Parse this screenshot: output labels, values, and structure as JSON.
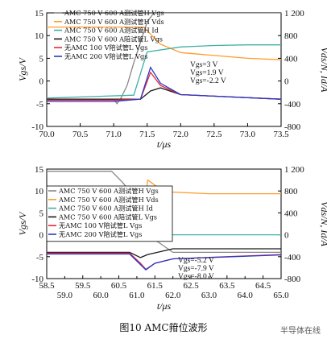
{
  "figure": {
    "caption": "图10   AMC箝位波形",
    "watermark": "半导体在线"
  },
  "chart_data": [
    {
      "type": "line",
      "xlabel": "t/μs",
      "ylabel_left": "Vgs/V",
      "ylabel_right": "Vds/N, Id/A",
      "xlim": [
        70.0,
        73.5
      ],
      "ylim_left": [
        -10,
        15
      ],
      "ylim_right": [
        -400,
        1200
      ],
      "x_ticks": [
        "70.0",
        "70.5",
        "71.0",
        "71.5",
        "72.0",
        "72.5",
        "73.0",
        "73.5"
      ],
      "y_ticks_left": [
        "15",
        "10",
        "5",
        "0",
        "-5",
        "-10"
      ],
      "y_ticks_right": [
        "1 200",
        "800",
        "400",
        "0",
        "-400",
        "-800"
      ],
      "legend": [
        "AMC 750 V 600 A测试管H Vgs",
        "AMC 750 V 600 A测试管H Vds",
        "AMC 750 V 600 A测试管H Id",
        "AMC 750 V 600 A陪试管L Vgs",
        "无AMC 100 V陪试管L Vgs",
        "无AMC 200 V陪试管L Vgs"
      ],
      "annotations": [
        "Vgs=3 V",
        "Vgs=1.9 V",
        "Vgs=-2.2 V"
      ],
      "series": [
        {
          "name": "AMC 750 V 600 A测试管H Vgs",
          "axis": "left",
          "color": "#888888",
          "x": [
            70.0,
            71.0,
            71.05,
            71.1,
            71.2,
            71.3,
            71.5,
            71.6,
            73.5
          ],
          "y": [
            -4,
            -4,
            -5,
            -4,
            -1,
            4,
            13,
            15,
            15
          ]
        },
        {
          "name": "AMC 750 V 600 A测试管H Vds",
          "axis": "right",
          "color": "#ff9c2a",
          "x": [
            70.0,
            71.45,
            71.55,
            71.7,
            72.0,
            72.5,
            73.0,
            73.5
          ],
          "y": [
            1000,
            1000,
            900,
            760,
            640,
            600,
            560,
            540
          ]
        },
        {
          "name": "AMC 750 V 600 A测试管H Id",
          "axis": "right",
          "color": "#3fb0a8",
          "x": [
            70.0,
            71.3,
            71.5,
            72.0,
            72.5,
            73.0,
            73.5
          ],
          "y": [
            0,
            40,
            650,
            720,
            740,
            750,
            750
          ]
        },
        {
          "name": "AMC 750 V 600 A陪试管L Vgs",
          "axis": "left",
          "color": "#1a1a1a",
          "x": [
            70.0,
            71.0,
            71.4,
            71.55,
            71.7,
            72.0,
            73.5
          ],
          "y": [
            -4,
            -4,
            -4,
            -2.2,
            -1.5,
            -3,
            -4
          ]
        },
        {
          "name": "无AMC 100 V陪试管L Vgs",
          "axis": "left",
          "color": "#e8263a",
          "x": [
            70.0,
            71.0,
            71.4,
            71.55,
            71.7,
            72.0,
            73.5
          ],
          "y": [
            -4.2,
            -4.2,
            -4,
            1.9,
            -1,
            -3,
            -4
          ]
        },
        {
          "name": "无AMC 200 V陪试管L Vgs",
          "axis": "left",
          "color": "#2a38c8",
          "x": [
            70.0,
            71.0,
            71.4,
            71.55,
            71.7,
            72.0,
            73.5
          ],
          "y": [
            -4.5,
            -4.5,
            -4,
            3,
            -0.5,
            -3,
            -4
          ]
        }
      ]
    },
    {
      "type": "line",
      "xlabel": "t/μs",
      "ylabel_left": "Vgs/V",
      "ylabel_right": "Vds/N, Id/A",
      "xlim": [
        58.5,
        65.0
      ],
      "ylim_left": [
        -10,
        15
      ],
      "ylim_right": [
        -800,
        1200
      ],
      "x_ticks_upper": [
        "58.5",
        "59.5",
        "60.5",
        "61.5",
        "62.5",
        "63.5",
        "64.5"
      ],
      "x_ticks_lower": [
        "59.0",
        "60.0",
        "61.0",
        "62.0",
        "63.0",
        "64.0",
        "65.0"
      ],
      "y_ticks_left": [
        "15",
        "10",
        "5",
        "0",
        "-5",
        "-10"
      ],
      "y_ticks_right": [
        "1 200",
        "800",
        "400",
        "0",
        "-400",
        "-800"
      ],
      "legend": [
        "AMC 750 V 600 A测试管H Vgs",
        "AMC 750 V 600 A测试管H Vds",
        "AMC 750 V 600 A测试管H Id",
        "AMC 750 V 600 A陪试管L Vgs",
        "无AMC 100 V陪试管L Vgs",
        "无AMC 200 V陪试管L Vgs"
      ],
      "annotations": [
        "Vgs=-5.2 V",
        "Vgs=-7.9 V",
        "Vgs=-8.0 V"
      ],
      "series": [
        {
          "name": "AMC 750 V 600 A测试管H Vgs",
          "axis": "left",
          "color": "#888888",
          "x": [
            58.5,
            60.3,
            60.6,
            61.0,
            61.3,
            62.0,
            65.0
          ],
          "y": [
            14.5,
            14.5,
            12,
            8,
            0,
            -4,
            -4
          ]
        },
        {
          "name": "AMC 750 V 600 A测试管H Vds",
          "axis": "right",
          "color": "#ff9c2a",
          "x": [
            58.5,
            60.8,
            61.15,
            61.3,
            61.6,
            62.0,
            63.0,
            65.0
          ],
          "y": [
            0,
            0,
            100,
            1000,
            860,
            780,
            750,
            750
          ]
        },
        {
          "name": "AMC 750 V 600 A测试管H Id",
          "axis": "right",
          "color": "#3fb0a8",
          "x": [
            58.5,
            60.6,
            61.0,
            61.3,
            62.0,
            65.0
          ],
          "y": [
            740,
            730,
            500,
            50,
            0,
            0
          ]
        },
        {
          "name": "AMC 750 V 600 A陪试管L Vgs",
          "axis": "left",
          "color": "#1a1a1a",
          "x": [
            58.5,
            60.8,
            61.1,
            61.3,
            62.0,
            65.0
          ],
          "y": [
            -4,
            -4,
            -5.2,
            -4.5,
            -3.2,
            -3.2
          ]
        },
        {
          "name": "无AMC 100 V陪试管L Vgs",
          "axis": "left",
          "color": "#e8263a",
          "x": [
            58.5,
            60.8,
            61.1,
            61.25,
            61.5,
            62.0,
            65.0
          ],
          "y": [
            -4.2,
            -4.2,
            -6.5,
            -7.9,
            -6.5,
            -5.5,
            -4.5
          ]
        },
        {
          "name": "无AMC 200 V陪试管L Vgs",
          "axis": "left",
          "color": "#2a38c8",
          "x": [
            58.5,
            60.8,
            61.1,
            61.25,
            61.5,
            62.0,
            65.0
          ],
          "y": [
            -4.4,
            -4.4,
            -6.8,
            -8.0,
            -6.5,
            -5.5,
            -4.6
          ]
        }
      ]
    }
  ]
}
